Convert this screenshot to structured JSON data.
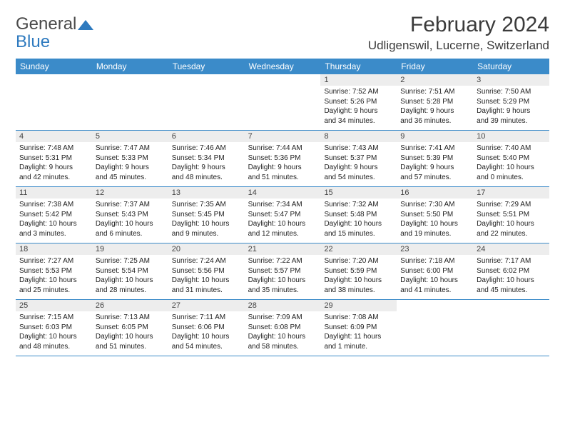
{
  "logo": {
    "word1": "General",
    "word2": "Blue"
  },
  "title": "February 2024",
  "location": "Udligenswil, Lucerne, Switzerland",
  "header_bg": "#3b8bc9",
  "header_text_color": "#ffffff",
  "daynum_bg": "#ededed",
  "row_border_color": "#3b8bc9",
  "weekdays": [
    "Sunday",
    "Monday",
    "Tuesday",
    "Wednesday",
    "Thursday",
    "Friday",
    "Saturday"
  ],
  "weeks": [
    [
      {
        "n": "",
        "lines": [
          "",
          "",
          "",
          ""
        ]
      },
      {
        "n": "",
        "lines": [
          "",
          "",
          "",
          ""
        ]
      },
      {
        "n": "",
        "lines": [
          "",
          "",
          "",
          ""
        ]
      },
      {
        "n": "",
        "lines": [
          "",
          "",
          "",
          ""
        ]
      },
      {
        "n": "1",
        "lines": [
          "Sunrise: 7:52 AM",
          "Sunset: 5:26 PM",
          "Daylight: 9 hours",
          "and 34 minutes."
        ]
      },
      {
        "n": "2",
        "lines": [
          "Sunrise: 7:51 AM",
          "Sunset: 5:28 PM",
          "Daylight: 9 hours",
          "and 36 minutes."
        ]
      },
      {
        "n": "3",
        "lines": [
          "Sunrise: 7:50 AM",
          "Sunset: 5:29 PM",
          "Daylight: 9 hours",
          "and 39 minutes."
        ]
      }
    ],
    [
      {
        "n": "4",
        "lines": [
          "Sunrise: 7:48 AM",
          "Sunset: 5:31 PM",
          "Daylight: 9 hours",
          "and 42 minutes."
        ]
      },
      {
        "n": "5",
        "lines": [
          "Sunrise: 7:47 AM",
          "Sunset: 5:33 PM",
          "Daylight: 9 hours",
          "and 45 minutes."
        ]
      },
      {
        "n": "6",
        "lines": [
          "Sunrise: 7:46 AM",
          "Sunset: 5:34 PM",
          "Daylight: 9 hours",
          "and 48 minutes."
        ]
      },
      {
        "n": "7",
        "lines": [
          "Sunrise: 7:44 AM",
          "Sunset: 5:36 PM",
          "Daylight: 9 hours",
          "and 51 minutes."
        ]
      },
      {
        "n": "8",
        "lines": [
          "Sunrise: 7:43 AM",
          "Sunset: 5:37 PM",
          "Daylight: 9 hours",
          "and 54 minutes."
        ]
      },
      {
        "n": "9",
        "lines": [
          "Sunrise: 7:41 AM",
          "Sunset: 5:39 PM",
          "Daylight: 9 hours",
          "and 57 minutes."
        ]
      },
      {
        "n": "10",
        "lines": [
          "Sunrise: 7:40 AM",
          "Sunset: 5:40 PM",
          "Daylight: 10 hours",
          "and 0 minutes."
        ]
      }
    ],
    [
      {
        "n": "11",
        "lines": [
          "Sunrise: 7:38 AM",
          "Sunset: 5:42 PM",
          "Daylight: 10 hours",
          "and 3 minutes."
        ]
      },
      {
        "n": "12",
        "lines": [
          "Sunrise: 7:37 AM",
          "Sunset: 5:43 PM",
          "Daylight: 10 hours",
          "and 6 minutes."
        ]
      },
      {
        "n": "13",
        "lines": [
          "Sunrise: 7:35 AM",
          "Sunset: 5:45 PM",
          "Daylight: 10 hours",
          "and 9 minutes."
        ]
      },
      {
        "n": "14",
        "lines": [
          "Sunrise: 7:34 AM",
          "Sunset: 5:47 PM",
          "Daylight: 10 hours",
          "and 12 minutes."
        ]
      },
      {
        "n": "15",
        "lines": [
          "Sunrise: 7:32 AM",
          "Sunset: 5:48 PM",
          "Daylight: 10 hours",
          "and 15 minutes."
        ]
      },
      {
        "n": "16",
        "lines": [
          "Sunrise: 7:30 AM",
          "Sunset: 5:50 PM",
          "Daylight: 10 hours",
          "and 19 minutes."
        ]
      },
      {
        "n": "17",
        "lines": [
          "Sunrise: 7:29 AM",
          "Sunset: 5:51 PM",
          "Daylight: 10 hours",
          "and 22 minutes."
        ]
      }
    ],
    [
      {
        "n": "18",
        "lines": [
          "Sunrise: 7:27 AM",
          "Sunset: 5:53 PM",
          "Daylight: 10 hours",
          "and 25 minutes."
        ]
      },
      {
        "n": "19",
        "lines": [
          "Sunrise: 7:25 AM",
          "Sunset: 5:54 PM",
          "Daylight: 10 hours",
          "and 28 minutes."
        ]
      },
      {
        "n": "20",
        "lines": [
          "Sunrise: 7:24 AM",
          "Sunset: 5:56 PM",
          "Daylight: 10 hours",
          "and 31 minutes."
        ]
      },
      {
        "n": "21",
        "lines": [
          "Sunrise: 7:22 AM",
          "Sunset: 5:57 PM",
          "Daylight: 10 hours",
          "and 35 minutes."
        ]
      },
      {
        "n": "22",
        "lines": [
          "Sunrise: 7:20 AM",
          "Sunset: 5:59 PM",
          "Daylight: 10 hours",
          "and 38 minutes."
        ]
      },
      {
        "n": "23",
        "lines": [
          "Sunrise: 7:18 AM",
          "Sunset: 6:00 PM",
          "Daylight: 10 hours",
          "and 41 minutes."
        ]
      },
      {
        "n": "24",
        "lines": [
          "Sunrise: 7:17 AM",
          "Sunset: 6:02 PM",
          "Daylight: 10 hours",
          "and 45 minutes."
        ]
      }
    ],
    [
      {
        "n": "25",
        "lines": [
          "Sunrise: 7:15 AM",
          "Sunset: 6:03 PM",
          "Daylight: 10 hours",
          "and 48 minutes."
        ]
      },
      {
        "n": "26",
        "lines": [
          "Sunrise: 7:13 AM",
          "Sunset: 6:05 PM",
          "Daylight: 10 hours",
          "and 51 minutes."
        ]
      },
      {
        "n": "27",
        "lines": [
          "Sunrise: 7:11 AM",
          "Sunset: 6:06 PM",
          "Daylight: 10 hours",
          "and 54 minutes."
        ]
      },
      {
        "n": "28",
        "lines": [
          "Sunrise: 7:09 AM",
          "Sunset: 6:08 PM",
          "Daylight: 10 hours",
          "and 58 minutes."
        ]
      },
      {
        "n": "29",
        "lines": [
          "Sunrise: 7:08 AM",
          "Sunset: 6:09 PM",
          "Daylight: 11 hours",
          "and 1 minute."
        ]
      },
      {
        "n": "",
        "lines": [
          "",
          "",
          "",
          ""
        ]
      },
      {
        "n": "",
        "lines": [
          "",
          "",
          "",
          ""
        ]
      }
    ]
  ]
}
